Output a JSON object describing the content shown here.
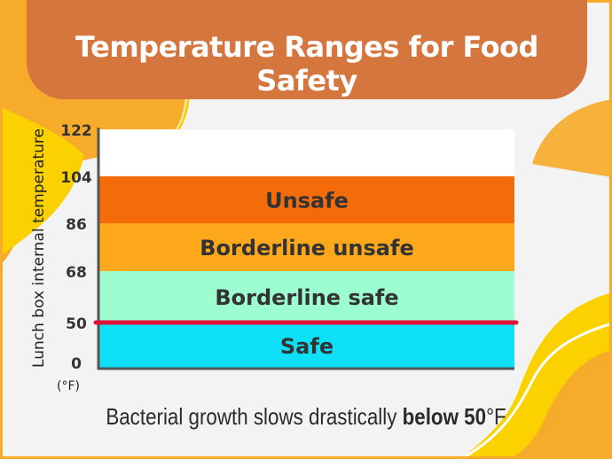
{
  "title": "Temperature Ranges for Food Safety",
  "caption": {
    "prefix": "Bacterial growth slows drastically ",
    "emphasis": "below 50",
    "suffix": "°F"
  },
  "colors": {
    "banner": "#d5763f",
    "threshold_line": "#e0123a"
  },
  "chart_data": {
    "type": "bar",
    "orientation": "stacked-bands",
    "ylabel": "Lunch box internal temperature",
    "unit": "(°F)",
    "ylim": [
      0,
      122
    ],
    "yticks": [
      0,
      50,
      68,
      86,
      104,
      122
    ],
    "bands": [
      {
        "label": "Safe",
        "from": 0,
        "to": 50,
        "color": "#0ee0f8"
      },
      {
        "label": "Borderline safe",
        "from": 50,
        "to": 68,
        "color": "#9bfdd0"
      },
      {
        "label": "Borderline unsafe",
        "from": 68,
        "to": 86,
        "color": "#fca81a"
      },
      {
        "label": "Unsafe",
        "from": 86,
        "to": 104,
        "color": "#f56b0a"
      }
    ],
    "threshold": 50
  }
}
